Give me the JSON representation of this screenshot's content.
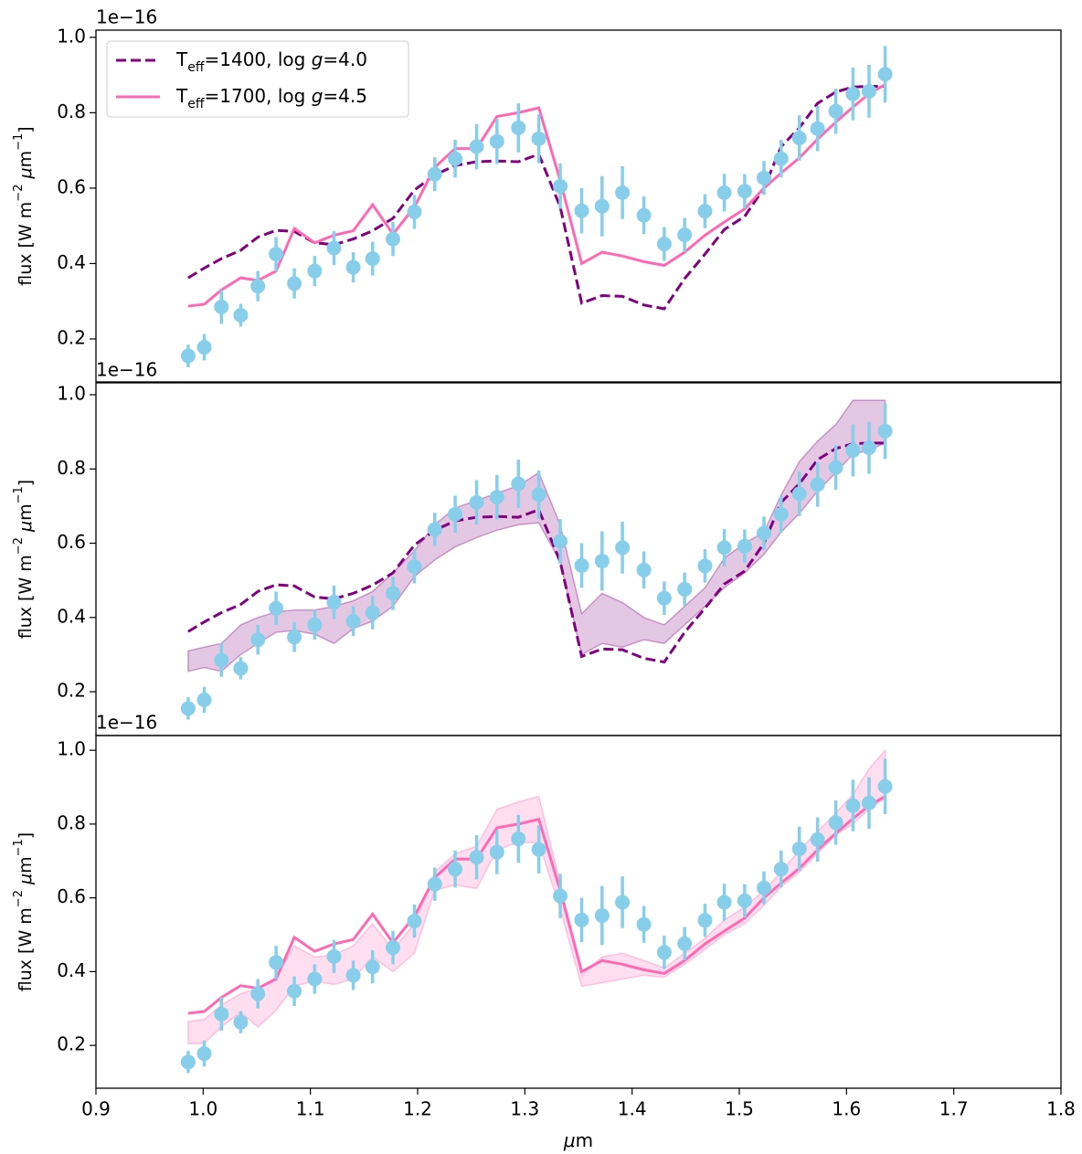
{
  "chart_data": [
    {
      "type": "errorbar-line",
      "offset_text": "1e−16",
      "ylabel": "flux [W m−2 μm−1]",
      "xlim": [
        0.9,
        1.8
      ],
      "ylim": [
        0.086,
        1.019
      ],
      "yticks": [
        0.2,
        0.4,
        0.6,
        {
          "value": 1,
          "label": "1.0"
        },
        0.8
      ],
      "x": [
        0.986,
        1.001,
        1.017,
        1.035,
        1.051,
        1.068,
        1.085,
        1.104,
        1.122,
        1.14,
        1.158,
        1.177,
        1.197,
        1.216,
        1.235,
        1.255,
        1.274,
        1.294,
        1.313,
        1.333,
        1.353,
        1.372,
        1.391,
        1.411,
        1.43,
        1.449,
        1.468,
        1.486,
        1.505,
        1.523,
        1.539,
        1.556,
        1.573,
        1.59,
        1.606,
        1.621,
        1.636
      ],
      "legend": "upper left",
      "series": [
        {
          "type": "line",
          "name": "Teff=1400, log g=4.0",
          "color": "#800080",
          "dash": true,
          "values": [
            0.362,
            0.388,
            0.413,
            0.435,
            0.47,
            0.488,
            0.485,
            0.455,
            0.45,
            0.465,
            0.487,
            0.52,
            0.595,
            0.635,
            0.66,
            0.67,
            0.672,
            0.67,
            0.69,
            0.55,
            0.295,
            0.315,
            0.313,
            0.29,
            0.28,
            0.36,
            0.425,
            0.49,
            0.525,
            0.6,
            0.71,
            0.76,
            0.825,
            0.855,
            0.868,
            0.87,
            0.87
          ]
        },
        {
          "type": "line",
          "name": "Teff=1700, log g=4.5",
          "color": "#ff69b4",
          "values": [
            0.287,
            0.292,
            0.33,
            0.362,
            0.355,
            0.38,
            0.493,
            0.455,
            0.475,
            0.487,
            0.556,
            0.478,
            0.55,
            0.655,
            0.705,
            0.705,
            0.79,
            0.8,
            0.813,
            0.62,
            0.4,
            0.43,
            0.42,
            0.405,
            0.395,
            0.43,
            0.475,
            0.51,
            0.545,
            0.6,
            0.64,
            0.68,
            0.73,
            0.775,
            0.815,
            0.85,
            0.875
          ]
        },
        {
          "type": "errorbar",
          "color": "#87ceeb",
          "values": [
            0.155,
            0.178,
            0.285,
            0.263,
            0.34,
            0.425,
            0.347,
            0.38,
            0.441,
            0.39,
            0.413,
            0.465,
            0.537,
            0.637,
            0.678,
            0.71,
            0.724,
            0.76,
            0.731,
            0.605,
            0.54,
            0.552,
            0.588,
            0.528,
            0.452,
            0.476,
            0.539,
            0.588,
            0.592,
            0.627,
            0.678,
            0.733,
            0.758,
            0.804,
            0.85,
            0.857,
            0.902
          ],
          "errors": [
            0.03,
            0.035,
            0.045,
            0.03,
            0.04,
            0.045,
            0.04,
            0.04,
            0.045,
            0.04,
            0.045,
            0.045,
            0.045,
            0.045,
            0.05,
            0.06,
            0.06,
            0.065,
            0.065,
            0.06,
            0.06,
            0.08,
            0.07,
            0.05,
            0.045,
            0.045,
            0.045,
            0.05,
            0.045,
            0.045,
            0.05,
            0.06,
            0.06,
            0.06,
            0.07,
            0.07,
            0.075
          ]
        }
      ]
    },
    {
      "type": "errorbar-line",
      "offset_text": "1e−16",
      "ylabel": "flux [W m−2 μm−1]",
      "xlim": [
        0.9,
        1.8
      ],
      "ylim": [
        0.082,
        1.032
      ],
      "yticks": [
        0.2,
        0.4,
        0.6,
        0.8,
        {
          "value": 1,
          "label": "1.0"
        }
      ],
      "x": [
        0.986,
        1.001,
        1.017,
        1.035,
        1.051,
        1.068,
        1.085,
        1.104,
        1.122,
        1.14,
        1.158,
        1.177,
        1.197,
        1.216,
        1.235,
        1.255,
        1.274,
        1.294,
        1.313,
        1.333,
        1.353,
        1.372,
        1.391,
        1.411,
        1.43,
        1.449,
        1.468,
        1.486,
        1.505,
        1.523,
        1.539,
        1.556,
        1.573,
        1.59,
        1.606,
        1.621,
        1.636
      ],
      "series": [
        {
          "type": "band",
          "color": "#800080",
          "upper": [
            0.31,
            0.32,
            0.33,
            0.38,
            0.4,
            0.415,
            0.42,
            0.42,
            0.43,
            0.445,
            0.47,
            0.52,
            0.58,
            0.65,
            0.695,
            0.715,
            0.735,
            0.755,
            0.79,
            0.65,
            0.41,
            0.465,
            0.44,
            0.4,
            0.38,
            0.43,
            0.48,
            0.56,
            0.6,
            0.63,
            0.73,
            0.82,
            0.875,
            0.92,
            0.985,
            0.985,
            0.985
          ],
          "lower": [
            0.255,
            0.265,
            0.255,
            0.3,
            0.33,
            0.36,
            0.365,
            0.355,
            0.33,
            0.37,
            0.39,
            0.43,
            0.51,
            0.555,
            0.59,
            0.615,
            0.635,
            0.65,
            0.655,
            0.55,
            0.3,
            0.33,
            0.32,
            0.34,
            0.33,
            0.38,
            0.43,
            0.48,
            0.52,
            0.57,
            0.63,
            0.68,
            0.74,
            0.79,
            0.84,
            0.85,
            0.87
          ]
        },
        {
          "type": "line",
          "color": "#800080",
          "dash": true,
          "values": [
            0.362,
            0.388,
            0.413,
            0.435,
            0.47,
            0.488,
            0.485,
            0.455,
            0.45,
            0.465,
            0.487,
            0.52,
            0.595,
            0.635,
            0.66,
            0.67,
            0.672,
            0.67,
            0.69,
            0.55,
            0.295,
            0.315,
            0.313,
            0.29,
            0.28,
            0.36,
            0.425,
            0.49,
            0.525,
            0.6,
            0.71,
            0.76,
            0.825,
            0.855,
            0.868,
            0.87,
            0.87
          ]
        },
        {
          "type": "errorbar",
          "color": "#87ceeb",
          "values": [
            0.155,
            0.178,
            0.285,
            0.263,
            0.34,
            0.425,
            0.347,
            0.38,
            0.441,
            0.39,
            0.413,
            0.465,
            0.537,
            0.637,
            0.678,
            0.71,
            0.724,
            0.76,
            0.731,
            0.605,
            0.54,
            0.552,
            0.588,
            0.528,
            0.452,
            0.476,
            0.539,
            0.588,
            0.592,
            0.627,
            0.678,
            0.733,
            0.758,
            0.804,
            0.85,
            0.857,
            0.902
          ],
          "errors": [
            0.03,
            0.035,
            0.045,
            0.03,
            0.04,
            0.045,
            0.04,
            0.04,
            0.045,
            0.04,
            0.045,
            0.045,
            0.045,
            0.045,
            0.05,
            0.06,
            0.06,
            0.065,
            0.065,
            0.06,
            0.06,
            0.08,
            0.07,
            0.05,
            0.045,
            0.045,
            0.045,
            0.05,
            0.045,
            0.045,
            0.05,
            0.06,
            0.06,
            0.06,
            0.07,
            0.07,
            0.075
          ]
        }
      ]
    },
    {
      "type": "errorbar-line",
      "offset_text": "1e−16",
      "ylabel": "flux [W m−2 μm−1]",
      "xlabel": "μm",
      "xlim": [
        0.9,
        1.8
      ],
      "ylim": [
        0.084,
        1.04
      ],
      "xticks": [
        0.9,
        {
          "value": 1,
          "label": "1.0"
        },
        1.1,
        1.2,
        1.3,
        1.4,
        1.5,
        1.6,
        1.7,
        1.8
      ],
      "yticks": [
        0.2,
        0.4,
        0.6,
        0.8,
        {
          "value": 1,
          "label": "1.0"
        }
      ],
      "x": [
        0.986,
        1.001,
        1.017,
        1.035,
        1.051,
        1.068,
        1.085,
        1.104,
        1.122,
        1.14,
        1.158,
        1.177,
        1.197,
        1.216,
        1.235,
        1.255,
        1.274,
        1.294,
        1.313,
        1.333,
        1.353,
        1.372,
        1.391,
        1.411,
        1.43,
        1.449,
        1.468,
        1.486,
        1.505,
        1.523,
        1.539,
        1.556,
        1.573,
        1.59,
        1.606,
        1.621,
        1.636
      ],
      "series": [
        {
          "type": "band",
          "color": "#ff69b4",
          "upper": [
            0.265,
            0.27,
            0.31,
            0.34,
            0.355,
            0.385,
            0.47,
            0.44,
            0.445,
            0.47,
            0.53,
            0.46,
            0.53,
            0.67,
            0.72,
            0.74,
            0.84,
            0.86,
            0.875,
            0.64,
            0.39,
            0.44,
            0.45,
            0.43,
            0.41,
            0.45,
            0.49,
            0.54,
            0.575,
            0.62,
            0.67,
            0.73,
            0.78,
            0.83,
            0.88,
            0.95,
            1.0
          ],
          "lower": [
            0.205,
            0.205,
            0.25,
            0.29,
            0.25,
            0.295,
            0.36,
            0.375,
            0.365,
            0.38,
            0.44,
            0.4,
            0.45,
            0.62,
            0.635,
            0.625,
            0.73,
            0.75,
            0.75,
            0.57,
            0.36,
            0.37,
            0.38,
            0.39,
            0.385,
            0.42,
            0.46,
            0.5,
            0.53,
            0.58,
            0.63,
            0.67,
            0.72,
            0.77,
            0.8,
            0.84,
            0.87
          ]
        },
        {
          "type": "line",
          "color": "#ff69b4",
          "values": [
            0.287,
            0.292,
            0.33,
            0.362,
            0.355,
            0.38,
            0.493,
            0.455,
            0.475,
            0.487,
            0.556,
            0.478,
            0.55,
            0.655,
            0.705,
            0.705,
            0.79,
            0.8,
            0.813,
            0.62,
            0.4,
            0.43,
            0.42,
            0.405,
            0.395,
            0.43,
            0.475,
            0.51,
            0.545,
            0.6,
            0.64,
            0.68,
            0.73,
            0.775,
            0.815,
            0.85,
            0.875
          ]
        },
        {
          "type": "errorbar",
          "color": "#87ceeb",
          "values": [
            0.155,
            0.178,
            0.285,
            0.263,
            0.34,
            0.425,
            0.347,
            0.38,
            0.441,
            0.39,
            0.413,
            0.465,
            0.537,
            0.637,
            0.678,
            0.71,
            0.724,
            0.76,
            0.731,
            0.605,
            0.54,
            0.552,
            0.588,
            0.528,
            0.452,
            0.476,
            0.539,
            0.588,
            0.592,
            0.627,
            0.678,
            0.733,
            0.758,
            0.804,
            0.85,
            0.857,
            0.902
          ],
          "errors": [
            0.03,
            0.035,
            0.045,
            0.03,
            0.04,
            0.045,
            0.04,
            0.04,
            0.045,
            0.04,
            0.045,
            0.045,
            0.045,
            0.045,
            0.05,
            0.06,
            0.06,
            0.065,
            0.065,
            0.06,
            0.06,
            0.08,
            0.07,
            0.05,
            0.045,
            0.045,
            0.045,
            0.05,
            0.045,
            0.045,
            0.05,
            0.06,
            0.06,
            0.06,
            0.07,
            0.07,
            0.075
          ]
        }
      ]
    }
  ]
}
